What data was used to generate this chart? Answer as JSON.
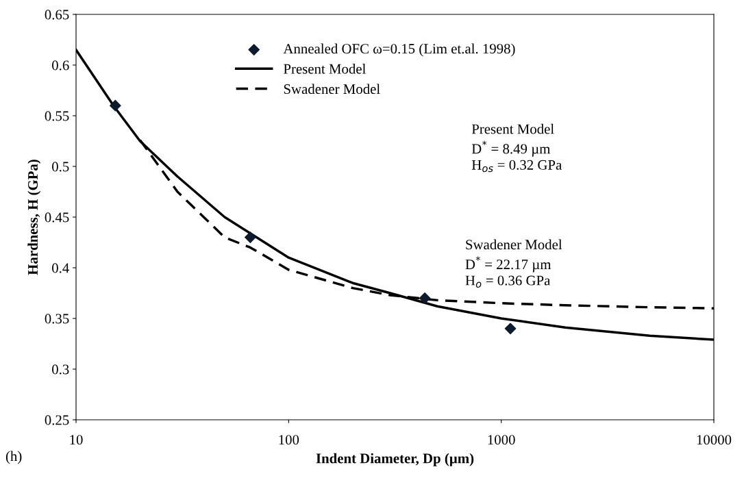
{
  "chart_data": {
    "type": "line",
    "xlabel": "Indent Diameter, Dp (µm)",
    "ylabel": "Hardness, H (GPa)",
    "log": "x",
    "xlim": [
      10,
      10000
    ],
    "xticks": [
      10,
      100,
      1000,
      10000
    ],
    "ylim": [
      0.25,
      0.65
    ],
    "yticks": [
      0.25,
      0.3,
      0.35,
      0.4,
      0.45,
      0.5,
      0.55,
      0.6,
      0.65
    ],
    "grid": false,
    "legend": "top",
    "series": [
      {
        "name": "Annealed OFC ω=0.15 (Lim et.al. 1998)",
        "type": "scatter",
        "marker": "diamond",
        "color": "#0d1b2e",
        "x": [
          15.3,
          66,
          437,
          1104
        ],
        "values": [
          0.56,
          0.43,
          0.37,
          0.34
        ]
      },
      {
        "name": "Present Model",
        "line_style": "solid",
        "color": "#000000",
        "x": [
          10,
          15,
          20,
          30,
          50,
          100,
          200,
          300,
          500,
          1000,
          2000,
          5000,
          10000
        ],
        "values": [
          0.615,
          0.56,
          0.525,
          0.49,
          0.45,
          0.41,
          0.385,
          0.375,
          0.362,
          0.35,
          0.341,
          0.333,
          0.329
        ]
      },
      {
        "name": "Swadener Model",
        "line_style": "dashed",
        "color": "#000000",
        "x": [
          20,
          30,
          50,
          66,
          100,
          200,
          300,
          500,
          1000,
          2000,
          5000,
          10000
        ],
        "values": [
          0.526,
          0.475,
          0.43,
          0.42,
          0.398,
          0.38,
          0.373,
          0.368,
          0.365,
          0.363,
          0.361,
          0.36
        ]
      }
    ],
    "annotations": [
      "Present Model\nD$^{*}$ = 8.49 µm\nH$_{os}$ = 0.32 GPa",
      "Swadener Model\nD$^{*}$ = 22.17 µm\nH$_{o}$ = 0.36 GPa",
      "(h)"
    ]
  }
}
